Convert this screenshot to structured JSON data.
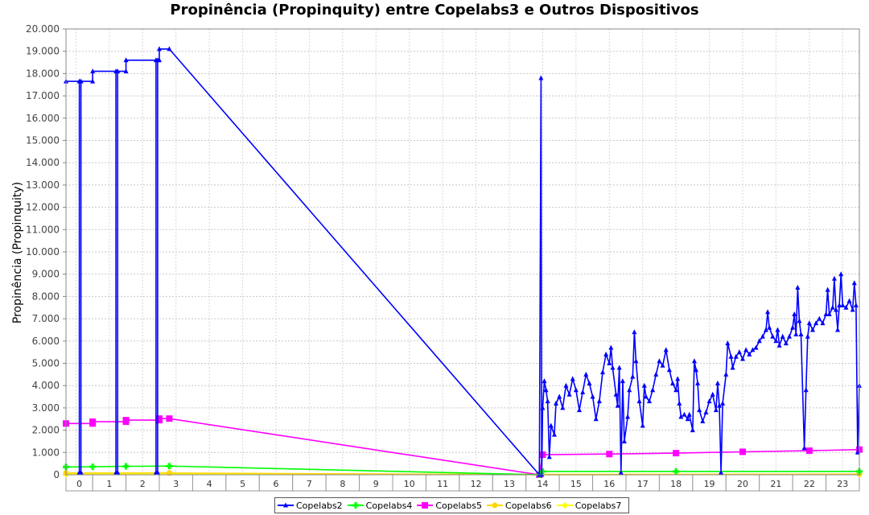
{
  "chart_data": {
    "type": "line",
    "title": "Propinência (Propinquity) entre Copelabs3 e Outros Dispositivos",
    "xlabel": "",
    "ylabel": "Propinência (Propinquity)",
    "xlim": [
      -0.3,
      23.5
    ],
    "ylim": [
      0,
      20000
    ],
    "y_ticks": [
      0,
      1000,
      2000,
      3000,
      4000,
      5000,
      6000,
      7000,
      8000,
      9000,
      10000,
      11000,
      12000,
      13000,
      14000,
      15000,
      16000,
      17000,
      18000,
      19000,
      20000
    ],
    "y_tick_labels": [
      "0",
      "1.000",
      "2.000",
      "3.000",
      "4.000",
      "5.000",
      "6.000",
      "7.000",
      "8.000",
      "9.000",
      "10.000",
      "11.000",
      "12.000",
      "13.000",
      "14.000",
      "15.000",
      "16.000",
      "17.000",
      "18.000",
      "19.000",
      "20.000"
    ],
    "categories": [
      "0",
      "1",
      "2",
      "3",
      "4",
      "5",
      "6",
      "7",
      "8",
      "9",
      "10",
      "11",
      "12",
      "13",
      "14",
      "15",
      "16",
      "17",
      "18",
      "19",
      "20",
      "21",
      "22",
      "23"
    ],
    "grid": true,
    "legend_position": "bottom",
    "series": [
      {
        "name": "Copelabs2",
        "color": "#0000ff",
        "marker": "triangle",
        "points": [
          [
            -0.3,
            17650
          ],
          [
            0.1,
            17650
          ],
          [
            0.1,
            100
          ],
          [
            0.15,
            100
          ],
          [
            0.15,
            17650
          ],
          [
            0.5,
            17650
          ],
          [
            0.5,
            18100
          ],
          [
            1.2,
            18100
          ],
          [
            1.2,
            100
          ],
          [
            1.25,
            100
          ],
          [
            1.25,
            18100
          ],
          [
            1.5,
            18100
          ],
          [
            1.5,
            18600
          ],
          [
            2.4,
            18600
          ],
          [
            2.4,
            100
          ],
          [
            2.45,
            100
          ],
          [
            2.45,
            18600
          ],
          [
            2.5,
            18600
          ],
          [
            2.5,
            19100
          ],
          [
            2.8,
            19100
          ],
          [
            13.9,
            0
          ],
          [
            13.95,
            17800
          ],
          [
            13.97,
            0
          ],
          [
            14.0,
            3000
          ],
          [
            14.05,
            4200
          ],
          [
            14.1,
            3800
          ],
          [
            14.15,
            3300
          ],
          [
            14.2,
            800
          ],
          [
            14.25,
            2200
          ],
          [
            14.35,
            1800
          ],
          [
            14.4,
            3200
          ],
          [
            14.5,
            3500
          ],
          [
            14.6,
            3000
          ],
          [
            14.7,
            4000
          ],
          [
            14.8,
            3600
          ],
          [
            14.9,
            4300
          ],
          [
            15.0,
            3800
          ],
          [
            15.1,
            2900
          ],
          [
            15.2,
            3700
          ],
          [
            15.3,
            4500
          ],
          [
            15.4,
            4100
          ],
          [
            15.5,
            3500
          ],
          [
            15.6,
            2500
          ],
          [
            15.7,
            3300
          ],
          [
            15.8,
            4600
          ],
          [
            15.9,
            5400
          ],
          [
            16.0,
            5000
          ],
          [
            16.05,
            5700
          ],
          [
            16.1,
            4800
          ],
          [
            16.2,
            3600
          ],
          [
            16.25,
            3100
          ],
          [
            16.3,
            4800
          ],
          [
            16.35,
            100
          ],
          [
            16.4,
            4200
          ],
          [
            16.45,
            1500
          ],
          [
            16.55,
            2600
          ],
          [
            16.6,
            3800
          ],
          [
            16.7,
            4400
          ],
          [
            16.75,
            6400
          ],
          [
            16.8,
            5100
          ],
          [
            16.9,
            3300
          ],
          [
            17.0,
            2200
          ],
          [
            17.05,
            4000
          ],
          [
            17.1,
            3500
          ],
          [
            17.2,
            3300
          ],
          [
            17.3,
            3800
          ],
          [
            17.4,
            4500
          ],
          [
            17.5,
            5100
          ],
          [
            17.6,
            4900
          ],
          [
            17.7,
            5600
          ],
          [
            17.8,
            4700
          ],
          [
            17.9,
            4100
          ],
          [
            18.0,
            3800
          ],
          [
            18.05,
            4300
          ],
          [
            18.1,
            3200
          ],
          [
            18.15,
            2600
          ],
          [
            18.25,
            2700
          ],
          [
            18.35,
            2500
          ],
          [
            18.4,
            2700
          ],
          [
            18.5,
            2000
          ],
          [
            18.55,
            5100
          ],
          [
            18.6,
            4700
          ],
          [
            18.65,
            4100
          ],
          [
            18.7,
            2900
          ],
          [
            18.8,
            2400
          ],
          [
            18.9,
            2800
          ],
          [
            19.0,
            3300
          ],
          [
            19.1,
            3600
          ],
          [
            19.2,
            2900
          ],
          [
            19.25,
            4100
          ],
          [
            19.3,
            3100
          ],
          [
            19.35,
            100
          ],
          [
            19.4,
            3200
          ],
          [
            19.5,
            4500
          ],
          [
            19.55,
            5900
          ],
          [
            19.65,
            5300
          ],
          [
            19.7,
            4800
          ],
          [
            19.8,
            5300
          ],
          [
            19.9,
            5500
          ],
          [
            20.0,
            5200
          ],
          [
            20.1,
            5600
          ],
          [
            20.2,
            5400
          ],
          [
            20.3,
            5600
          ],
          [
            20.4,
            5700
          ],
          [
            20.5,
            6000
          ],
          [
            20.6,
            6200
          ],
          [
            20.7,
            6500
          ],
          [
            20.75,
            7300
          ],
          [
            20.8,
            6600
          ],
          [
            20.9,
            6200
          ],
          [
            21.0,
            6000
          ],
          [
            21.05,
            6500
          ],
          [
            21.1,
            5800
          ],
          [
            21.2,
            6200
          ],
          [
            21.3,
            5900
          ],
          [
            21.4,
            6200
          ],
          [
            21.5,
            6600
          ],
          [
            21.55,
            7200
          ],
          [
            21.6,
            6300
          ],
          [
            21.65,
            8400
          ],
          [
            21.7,
            6900
          ],
          [
            21.75,
            6300
          ],
          [
            21.85,
            1200
          ],
          [
            21.9,
            3800
          ],
          [
            21.95,
            6200
          ],
          [
            22.0,
            6800
          ],
          [
            22.1,
            6500
          ],
          [
            22.2,
            6800
          ],
          [
            22.3,
            7000
          ],
          [
            22.4,
            6800
          ],
          [
            22.5,
            7200
          ],
          [
            22.55,
            8300
          ],
          [
            22.6,
            7200
          ],
          [
            22.7,
            7500
          ],
          [
            22.75,
            8800
          ],
          [
            22.8,
            7400
          ],
          [
            22.85,
            6500
          ],
          [
            22.9,
            7600
          ],
          [
            22.95,
            9000
          ],
          [
            23.0,
            7600
          ],
          [
            23.1,
            7500
          ],
          [
            23.2,
            7800
          ],
          [
            23.3,
            7400
          ],
          [
            23.35,
            8600
          ],
          [
            23.4,
            7600
          ],
          [
            23.45,
            1000
          ],
          [
            23.5,
            4000
          ]
        ]
      },
      {
        "name": "Copelabs4",
        "color": "#00ff00",
        "marker": "plus",
        "points": [
          [
            -0.3,
            350
          ],
          [
            0.5,
            360
          ],
          [
            1.5,
            380
          ],
          [
            2.8,
            390
          ],
          [
            13.9,
            0
          ],
          [
            14.0,
            150
          ],
          [
            18.0,
            150
          ],
          [
            23.5,
            150
          ]
        ]
      },
      {
        "name": "Copelabs5",
        "color": "#ff00ff",
        "marker": "square",
        "points": [
          [
            -0.3,
            2300
          ],
          [
            0.5,
            2300
          ],
          [
            0.5,
            2380
          ],
          [
            1.5,
            2380
          ],
          [
            1.5,
            2450
          ],
          [
            2.5,
            2450
          ],
          [
            2.5,
            2520
          ],
          [
            2.8,
            2520
          ],
          [
            13.9,
            0
          ],
          [
            14.0,
            900
          ],
          [
            16.0,
            930
          ],
          [
            18.0,
            970
          ],
          [
            20.0,
            1030
          ],
          [
            22.0,
            1080
          ],
          [
            23.5,
            1130
          ]
        ]
      },
      {
        "name": "Copelabs6",
        "color": "#ffd700",
        "marker": "circle",
        "points": [
          [
            -0.3,
            80
          ],
          [
            2.8,
            80
          ],
          [
            13.9,
            0
          ],
          [
            23.5,
            30
          ]
        ]
      },
      {
        "name": "Copelabs7",
        "color": "#ffff00",
        "marker": "diamond",
        "points": [
          [
            -0.3,
            20
          ],
          [
            23.5,
            20
          ]
        ]
      }
    ]
  }
}
